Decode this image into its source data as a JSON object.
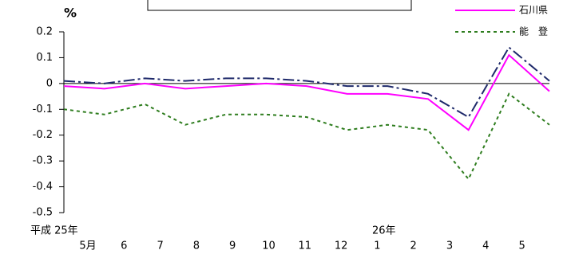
{
  "chart_data": {
    "type": "line",
    "y_label": "%",
    "categories": [
      "5月",
      "6",
      "7",
      "8",
      "9",
      "10",
      "11",
      "12",
      "1",
      "2",
      "3",
      "4",
      "5"
    ],
    "annotations": [
      "平成 25年",
      "26年"
    ],
    "series": [
      {
        "color": "#1f2a6b",
        "dash": "14,4,3,4",
        "values": [
          0.01,
          0,
          0.02,
          0.01,
          0.02,
          0.02,
          0.01,
          -0.01,
          -0.01,
          -0.04,
          -0.13,
          0.14,
          0.01
        ]
      },
      {
        "name": "石川県",
        "color": "#ff00ff",
        "values": [
          -0.01,
          -0.02,
          0,
          -0.02,
          -0.01,
          0,
          -0.01,
          -0.04,
          -0.04,
          -0.06,
          -0.18,
          0.11,
          -0.03
        ]
      },
      {
        "name": "能　登",
        "color": "#2e7d1e",
        "dash": "4,4",
        "values": [
          -0.1,
          -0.12,
          -0.08,
          -0.16,
          -0.12,
          -0.12,
          -0.13,
          -0.18,
          -0.16,
          -0.18,
          -0.37,
          -0.04,
          -0.16
        ]
      }
    ],
    "ylim": [
      -0.5,
      0.2
    ],
    "yticks": [
      0.2,
      0.1,
      0,
      -0.1,
      -0.2,
      -0.3,
      -0.4,
      -0.5
    ]
  }
}
